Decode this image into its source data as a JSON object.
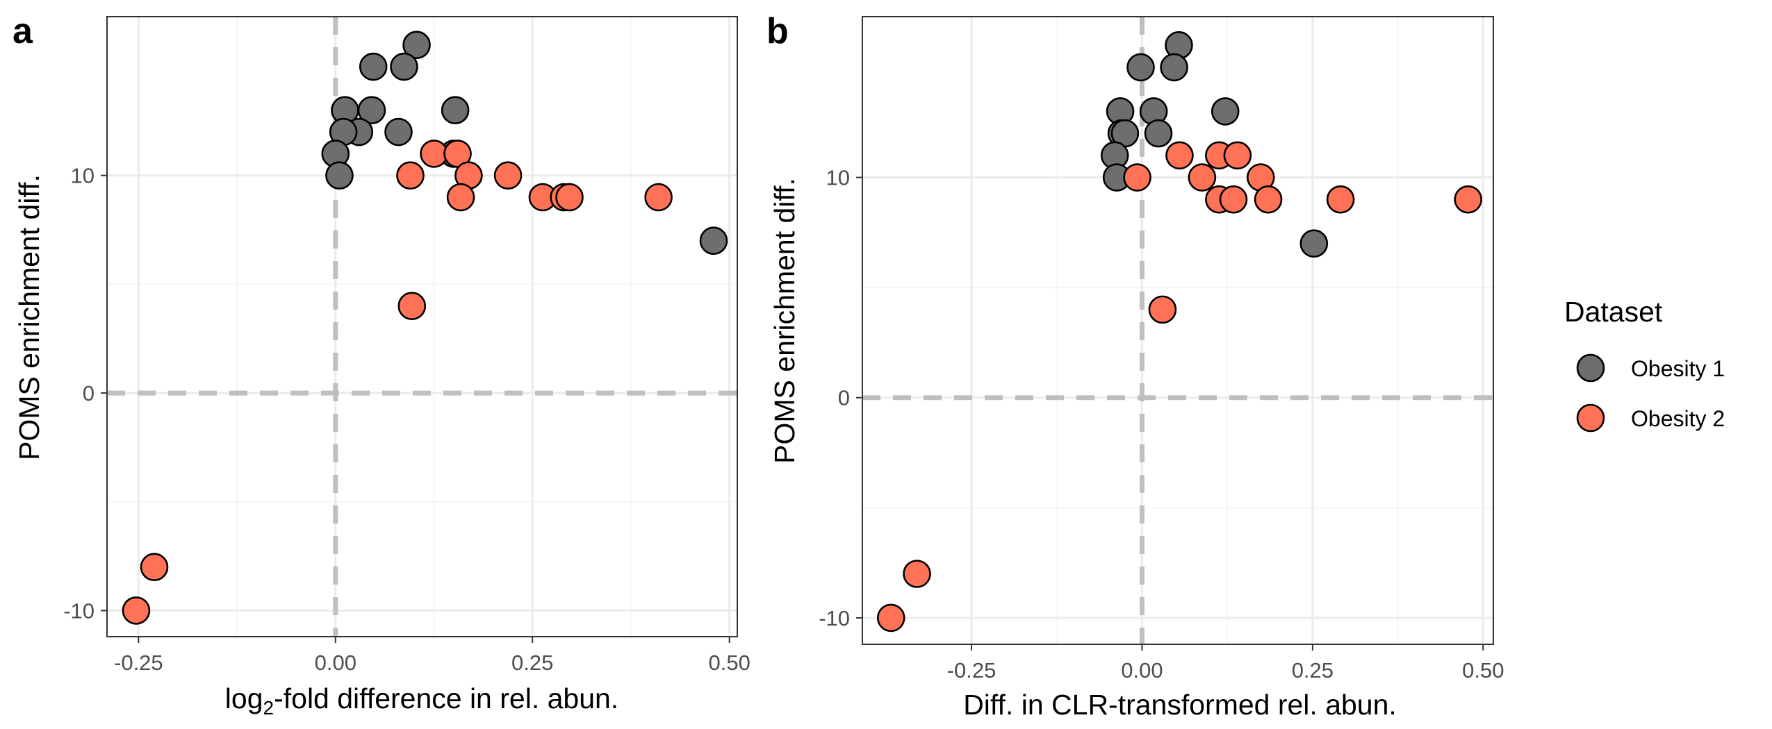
{
  "colors": {
    "obesity_1": "#6e6e6e",
    "obesity_2": "#ff7256",
    "grid_major": "#ebebeb",
    "grid_minor": "#f5f5f5",
    "reference_line": "#bfbfbf",
    "panel_border": "#333333"
  },
  "legend": {
    "title": "Dataset",
    "placement": "right",
    "entries": [
      {
        "label": "Obesity 1",
        "color": "#6e6e6e"
      },
      {
        "label": "Obesity 2",
        "color": "#ff7256"
      }
    ]
  },
  "chart_data": [
    {
      "panel": "a",
      "type": "scatter",
      "xlabel": "log2-fold difference in rel. abun.",
      "xlabel_parts": {
        "pre": "log",
        "sub": "2",
        "post": "-fold difference in rel. abun."
      },
      "ylabel": "POMS enrichment diff.",
      "xlim": [
        -0.29,
        0.51
      ],
      "ylim": [
        -11.2,
        17.3
      ],
      "xticks": [
        -0.25,
        0.0,
        0.25,
        0.5
      ],
      "xtick_labels": [
        "-0.25",
        "0.00",
        "0.25",
        "0.50"
      ],
      "yticks": [
        -10,
        0,
        10
      ],
      "ytick_labels": [
        "-10",
        "0",
        "10"
      ],
      "grid": true,
      "reference_lines": {
        "x": 0,
        "y": 0
      },
      "series": [
        {
          "name": "Obesity 1",
          "color": "#6e6e6e",
          "points": [
            [
              0.103,
              16
            ],
            [
              0.048,
              15
            ],
            [
              0.087,
              15
            ],
            [
              0.012,
              13
            ],
            [
              0.046,
              13
            ],
            [
              0.152,
              13
            ],
            [
              0.03,
              12
            ],
            [
              0.08,
              12
            ],
            [
              0.01,
              12
            ],
            [
              0.0,
              11
            ],
            [
              0.15,
              11
            ],
            [
              0.005,
              10
            ],
            [
              0.48,
              7
            ]
          ]
        },
        {
          "name": "Obesity 2",
          "color": "#ff7256",
          "points": [
            [
              0.125,
              11
            ],
            [
              0.155,
              11
            ],
            [
              0.095,
              10
            ],
            [
              0.169,
              10
            ],
            [
              0.219,
              10
            ],
            [
              0.159,
              9
            ],
            [
              0.263,
              9
            ],
            [
              0.29,
              9
            ],
            [
              0.297,
              9
            ],
            [
              0.41,
              9
            ],
            [
              0.097,
              4
            ],
            [
              -0.23,
              -8
            ],
            [
              -0.253,
              -10
            ]
          ]
        }
      ]
    },
    {
      "panel": "b",
      "type": "scatter",
      "xlabel": "Diff. in CLR-transformed rel. abun.",
      "ylabel": "POMS enrichment diff.",
      "xlim": [
        -0.41,
        0.515
      ],
      "ylim": [
        -11.2,
        17.3
      ],
      "xticks": [
        -0.25,
        0.0,
        0.25,
        0.5
      ],
      "xtick_labels": [
        "-0.25",
        "0.00",
        "0.25",
        "0.50"
      ],
      "yticks": [
        -10,
        0,
        10
      ],
      "ytick_labels": [
        "-10",
        "0",
        "10"
      ],
      "grid": true,
      "reference_lines": {
        "x": 0,
        "y": 0
      },
      "series": [
        {
          "name": "Obesity 1",
          "color": "#6e6e6e",
          "points": [
            [
              0.054,
              16
            ],
            [
              -0.002,
              15
            ],
            [
              0.047,
              15
            ],
            [
              -0.032,
              13
            ],
            [
              0.017,
              13
            ],
            [
              0.122,
              13
            ],
            [
              -0.03,
              12
            ],
            [
              -0.025,
              12
            ],
            [
              0.024,
              12
            ],
            [
              -0.04,
              11
            ],
            [
              -0.037,
              10
            ],
            [
              0.252,
              7
            ]
          ]
        },
        {
          "name": "Obesity 2",
          "color": "#ff7256",
          "points": [
            [
              0.055,
              11
            ],
            [
              0.113,
              11
            ],
            [
              0.14,
              11
            ],
            [
              -0.007,
              10
            ],
            [
              0.088,
              10
            ],
            [
              0.174,
              10
            ],
            [
              0.113,
              9
            ],
            [
              0.134,
              9
            ],
            [
              0.185,
              9
            ],
            [
              0.291,
              9
            ],
            [
              0.478,
              9
            ],
            [
              0.03,
              4
            ],
            [
              -0.33,
              -8
            ],
            [
              -0.368,
              -10
            ]
          ]
        }
      ]
    }
  ]
}
